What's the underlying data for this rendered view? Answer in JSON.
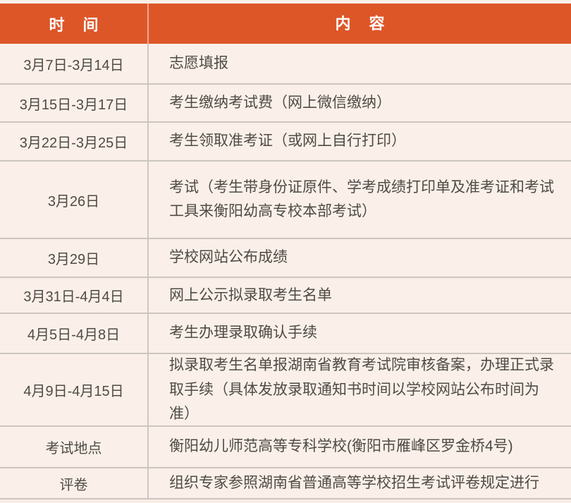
{
  "colors": {
    "header_bg": "#dd5628",
    "header_text": "#ffffff",
    "body_bg": "#faf0e9",
    "divider": "#cdc6c0",
    "body_text": "#4f4a45"
  },
  "table": {
    "header": {
      "time": "时 间",
      "content": "内 容"
    },
    "rows": [
      {
        "time": "3月7日-3月14日",
        "content": "志愿填报"
      },
      {
        "time": "3月15日-3月17日",
        "content": "考生缴纳考试费（网上微信缴纳）"
      },
      {
        "time": "3月22日-3月25日",
        "content": "考生领取准考证（或网上自行打印）"
      },
      {
        "time": "3月26日",
        "content": "考试（考生带身份证原件、学考成绩打印单及准考证和考试工具来衡阳幼高专校本部考试）"
      },
      {
        "time": "3月29日",
        "content": "学校网站公布成绩"
      },
      {
        "time": "3月31日-4月4日",
        "content": "网上公示拟录取考生名单"
      },
      {
        "time": "4月5日-4月8日",
        "content": "考生办理录取确认手续"
      },
      {
        "time": "4月9日-4月15日",
        "content": "拟录取考生名单报湖南省教育考试院审核备案，办理正式录取手续（具体发放录取通知书时间以学校网站公布时间为准）"
      },
      {
        "time": "考试地点",
        "content": "衡阳幼儿师范高等专科学校(衡阳市雁峰区罗金桥4号)"
      },
      {
        "time": "评卷",
        "content": "组织专家参照湖南省普通高等学校招生考试评卷规定进行"
      }
    ]
  }
}
